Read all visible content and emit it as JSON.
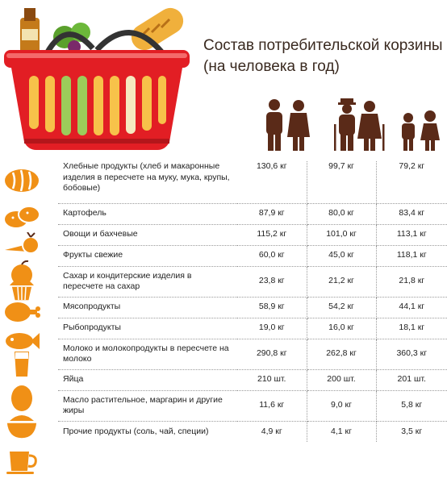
{
  "title": "Состав потребительской корзины\n(на человека в год)",
  "colors": {
    "accent": "#f09016",
    "icon_brown": "#5a2a18",
    "basket_red": "#e21e24"
  },
  "groups": [
    {
      "icon": "two-adults-icon"
    },
    {
      "icon": "two-elderly-with-canes-icon"
    },
    {
      "icon": "two-children-icon"
    }
  ],
  "rows": [
    {
      "icon": "bread-icon",
      "name": "Хлебные продукты (хлеб и макаронные изделия в пересчете на муку, мука, крупы, бобовые)",
      "v1": "130,6 кг",
      "v2": "99,7 кг",
      "v3": "79,2 кг"
    },
    {
      "icon": "potato-icon",
      "name": "Картофель",
      "v1": "87,9 кг",
      "v2": "80,0 кг",
      "v3": "83,4 кг"
    },
    {
      "icon": "vegetables-icon",
      "name": "Овощи и бахчевые",
      "v1": "115,2 кг",
      "v2": "101,0 кг",
      "v3": "113,1 кг"
    },
    {
      "icon": "fruit-icon",
      "name": "Фрукты свежие",
      "v1": "60,0 кг",
      "v2": "45,0 кг",
      "v3": "118,1 кг"
    },
    {
      "icon": "cupcake-icon",
      "name": "Сахар и кондитерские изделия в пересчете на сахар",
      "v1": "23,8 кг",
      "v2": "21,2 кг",
      "v3": "21,8 кг"
    },
    {
      "icon": "meat-leg-icon",
      "name": "Мясопродукты",
      "v1": "58,9 кг",
      "v2": "54,2 кг",
      "v3": "44,1 кг"
    },
    {
      "icon": "fish-icon",
      "name": "Рыбопродукты",
      "v1": "19,0 кг",
      "v2": "16,0 кг",
      "v3": "18,1 кг"
    },
    {
      "icon": "milk-glass-icon",
      "name": "Молоко и молокопродукты в пересчете на молоко",
      "v1": "290,8 кг",
      "v2": "262,8 кг",
      "v3": "360,3 кг"
    },
    {
      "icon": "egg-icon",
      "name": "Яйца",
      "v1": "210 шт.",
      "v2": "200 шт.",
      "v3": "201 шт."
    },
    {
      "icon": "butter-bowl-icon",
      "name": "Масло растительное, маргарин и другие жиры",
      "v1": "11,6 кг",
      "v2": "9,0 кг",
      "v3": "5,8 кг"
    },
    {
      "icon": "cup-icon",
      "name": "Прочие продукты (соль, чай, специи)",
      "v1": "4,9 кг",
      "v2": "4,1 кг",
      "v3": "3,5 кг"
    }
  ]
}
